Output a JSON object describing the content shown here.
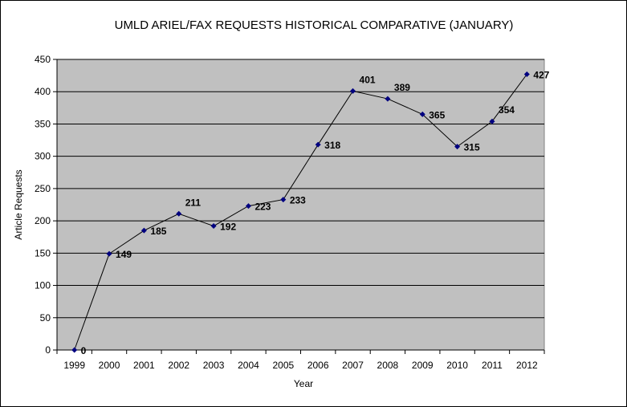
{
  "chart_data": {
    "type": "line",
    "title": "UMLD ARIEL/FAX REQUESTS HISTORICAL COMPARATIVE (JANUARY)",
    "xlabel": "Year",
    "ylabel": "Article Requests",
    "categories": [
      "1999",
      "2000",
      "2001",
      "2002",
      "2003",
      "2004",
      "2005",
      "2006",
      "2007",
      "2008",
      "2009",
      "2010",
      "2011",
      "2012"
    ],
    "series": [
      {
        "name": "Article Requests",
        "values": [
          0,
          149,
          185,
          211,
          192,
          223,
          233,
          318,
          401,
          389,
          365,
          315,
          354,
          427
        ]
      }
    ],
    "ylim": [
      0,
      450
    ],
    "yticks": [
      0,
      50,
      100,
      150,
      200,
      250,
      300,
      350,
      400,
      450
    ],
    "grid": true,
    "legend": "none",
    "colors": {
      "plot_bg": "#c0c0c0",
      "line": "#000000",
      "marker": "#000080"
    }
  }
}
